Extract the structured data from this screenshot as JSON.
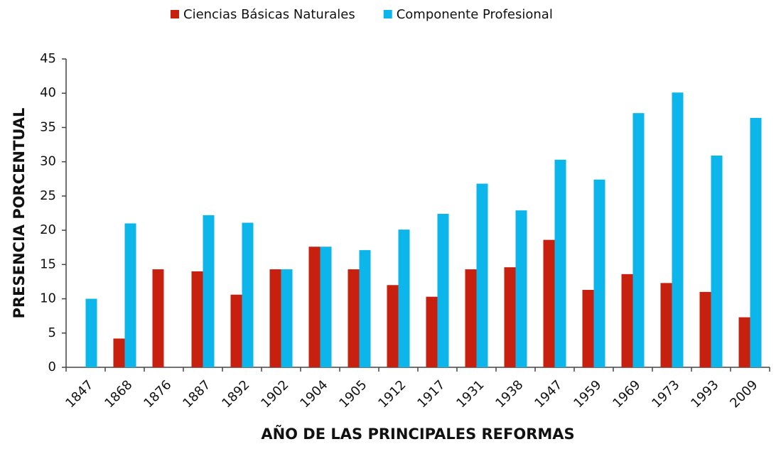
{
  "chart_data": {
    "type": "bar",
    "xlabel": "AÑO DE LAS PRINCIPALES REFORMAS",
    "ylabel": "PRESENCIA PORCENTUAL",
    "categories": [
      "1847",
      "1868",
      "1876",
      "1887",
      "1892",
      "1902",
      "1904",
      "1905",
      "1912",
      "1917",
      "1931",
      "1938",
      "1947",
      "1959",
      "1969",
      "1973",
      "1993",
      "2009"
    ],
    "series": [
      {
        "name": "Ciencias Básicas Naturales",
        "color": "#c8200e",
        "values": [
          0,
          4.2,
          14.3,
          14,
          10.6,
          14.3,
          17.6,
          14.3,
          12,
          10.3,
          14.3,
          14.6,
          18.6,
          11.3,
          13.6,
          12.3,
          11,
          7.3
        ]
      },
      {
        "name": "Componente Profesional",
        "color": "#0cb6ea",
        "values": [
          10,
          21,
          0,
          22.2,
          21.1,
          14.3,
          17.6,
          17.1,
          20.1,
          22.4,
          26.8,
          22.9,
          30.3,
          27.4,
          37.1,
          40.1,
          30.9,
          36.4
        ]
      }
    ],
    "ylim": [
      0,
      45
    ],
    "yticks": [
      0,
      5,
      10,
      15,
      20,
      25,
      30,
      35,
      40,
      45
    ],
    "legend": "top",
    "grid": false
  }
}
